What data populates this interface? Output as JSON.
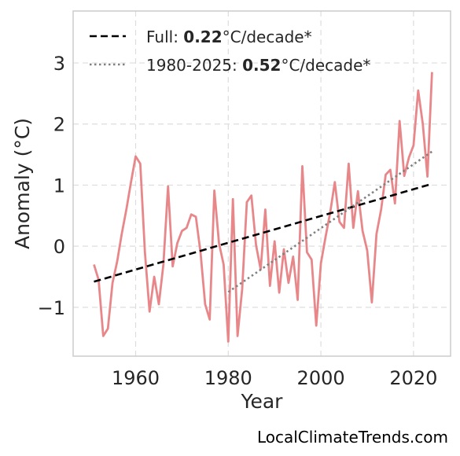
{
  "chart_data": {
    "type": "line",
    "xlabel": "Year",
    "ylabel": "Anomaly (°C)",
    "xlim": [
      1946.5,
      2028
    ],
    "ylim": [
      -1.8,
      3.85
    ],
    "xticks": [
      1960,
      1980,
      2000,
      2020
    ],
    "yticks": [
      -1,
      0,
      1,
      2,
      3
    ],
    "ytick_labels": [
      "−1",
      "0",
      "1",
      "2",
      "3"
    ],
    "grid": true,
    "legend_position": "top-left",
    "colors": {
      "anomaly": "#e8878a",
      "full_trend": "#000000",
      "recent_trend": "#808080",
      "frame": "#cccccc",
      "grid": "#dddddd"
    },
    "series": [
      {
        "x": [
          1951,
          1952,
          1953,
          1954,
          1955,
          1956,
          1957,
          1958,
          1959,
          1960,
          1961,
          1962,
          1963,
          1964,
          1965,
          1966,
          1967,
          1968,
          1969,
          1970,
          1971,
          1972,
          1973,
          1974,
          1975,
          1976,
          1977,
          1978,
          1979,
          1980,
          1981,
          1982,
          1983,
          1984,
          1985,
          1986,
          1987,
          1988,
          1989,
          1990,
          1991,
          1992,
          1993,
          1994,
          1995,
          1996,
          1997,
          1998,
          1999,
          2000,
          2001,
          2002,
          2003,
          2004,
          2005,
          2006,
          2007,
          2008,
          2009,
          2010,
          2011,
          2012,
          2013,
          2014,
          2015,
          2016,
          2017,
          2018,
          2019,
          2020,
          2021,
          2022,
          2023,
          2024
        ],
        "values": [
          -0.3,
          -0.55,
          -1.47,
          -1.35,
          -0.6,
          -0.25,
          0.2,
          0.6,
          1.05,
          1.47,
          1.35,
          -0.1,
          -1.07,
          -0.5,
          -0.95,
          -0.3,
          0.98,
          -0.33,
          0.05,
          0.25,
          0.3,
          0.52,
          0.48,
          -0.1,
          -0.95,
          -1.2,
          0.91,
          0.05,
          -0.3,
          -1.56,
          0.77,
          -1.47,
          -0.7,
          0.72,
          0.83,
          0.02,
          -0.38,
          0.6,
          -0.65,
          0.08,
          -0.76,
          -0.05,
          -0.6,
          -0.17,
          -0.88,
          1.31,
          -0.1,
          -0.22,
          -1.3,
          -0.28,
          0.15,
          0.55,
          1.05,
          0.4,
          0.3,
          1.35,
          0.3,
          0.9,
          0.25,
          -0.07,
          -0.92,
          0.2,
          0.6,
          1.17,
          1.25,
          0.7,
          2.05,
          1.15,
          1.45,
          1.65,
          2.55,
          2.0,
          1.14,
          2.85
        ]
      },
      {
        "name": "Full",
        "x": [
          1951,
          2024
        ],
        "values": [
          -0.58,
          1.02
        ]
      },
      {
        "name": "1980-2025",
        "x": [
          1980,
          2024
        ],
        "values": [
          -0.75,
          1.55
        ]
      }
    ],
    "legend": [
      {
        "name_prefix": "Full: ",
        "rate": "0.22",
        "unit": "°C/decade*"
      },
      {
        "name_prefix": "1980-2025: ",
        "rate": "0.52",
        "unit": "°C/decade*"
      }
    ]
  },
  "watermark": "LocalClimateTrends.com"
}
